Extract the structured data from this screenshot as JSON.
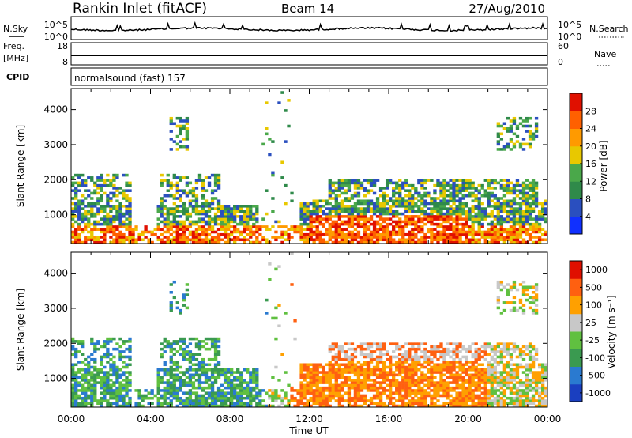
{
  "header": {
    "station": "Rankin Inlet (fitACF)",
    "beam": "Beam 14",
    "date": "27/Aug/2010"
  },
  "noise_panel": {
    "left_label": "N.Sky",
    "left_ticks": [
      "10^5",
      "10^0"
    ],
    "right_label": "N.Search",
    "right_ticks": [
      "10^5",
      "10^0"
    ]
  },
  "freq_panel": {
    "left_label_1": "Freq.",
    "left_label_2": "[MHz]",
    "left_ticks": [
      "18",
      "8"
    ],
    "right_label": "Nave",
    "right_ticks": [
      "60",
      "0"
    ]
  },
  "cpid_panel": {
    "label": "CPID",
    "mode": "normalsound (fast) 157"
  },
  "colors": {
    "power": [
      "#1030ff",
      "#2a4fbf",
      "#2f8a4a",
      "#4aa84a",
      "#e8c800",
      "#ff9a00",
      "#ff6000",
      "#e01000"
    ],
    "velocity": [
      "#1a3fc0",
      "#2a7ad0",
      "#3a9a50",
      "#60c040",
      "#c8c8c8",
      "#ffa000",
      "#ff6010",
      "#e01000"
    ]
  },
  "chart_data": [
    {
      "type": "heatmap",
      "name": "power",
      "ylabel": "Slant Range [km]",
      "yticks": [
        "1000",
        "2000",
        "3000",
        "4000"
      ],
      "ylim": [
        180,
        4600
      ],
      "xlim": [
        0,
        24
      ],
      "colorbar_label": "Power [dB]",
      "colorbar_ticks": [
        "4",
        "8",
        "12",
        "16",
        "20",
        "24",
        "28"
      ],
      "colorbar_range": [
        0,
        30
      ]
    },
    {
      "type": "heatmap",
      "name": "velocity",
      "ylabel": "Slant Range [km]",
      "yticks": [
        "1000",
        "2000",
        "3000",
        "4000"
      ],
      "ylim": [
        180,
        4600
      ],
      "xlim": [
        0,
        24
      ],
      "xticks": [
        "00:00",
        "04:00",
        "08:00",
        "12:00",
        "16:00",
        "20:00",
        "00:00"
      ],
      "xlabel": "Time UT",
      "colorbar_label": "Velocity [m s⁻¹]",
      "colorbar_ticks": [
        "1000",
        "500",
        "100",
        "25",
        "-25",
        "-100",
        "-500",
        "-1000"
      ]
    }
  ]
}
